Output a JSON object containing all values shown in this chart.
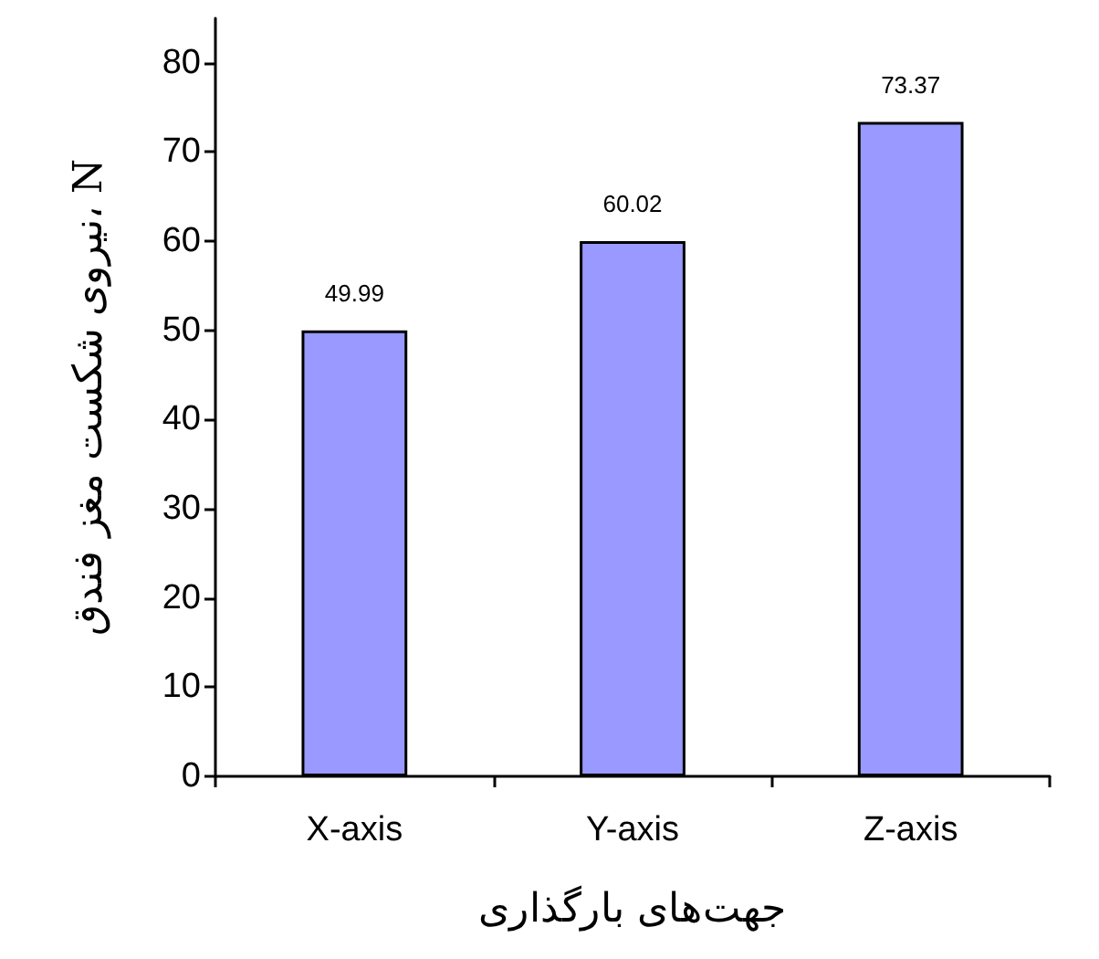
{
  "chart_data": {
    "type": "bar",
    "xlabel": "جهت‌های بارگذاری",
    "ylabel": "نیروی شکست مغز فندق، N",
    "categories": [
      "X-axis",
      "Y-axis",
      "Z-axis"
    ],
    "values": [
      49.99,
      60.02,
      73.37
    ],
    "color": "#9999ff",
    "ylim": [
      0,
      85
    ],
    "yticks": [
      0,
      10,
      20,
      30,
      40,
      50,
      60,
      70,
      80
    ],
    "data_labels": true,
    "grid": false
  }
}
